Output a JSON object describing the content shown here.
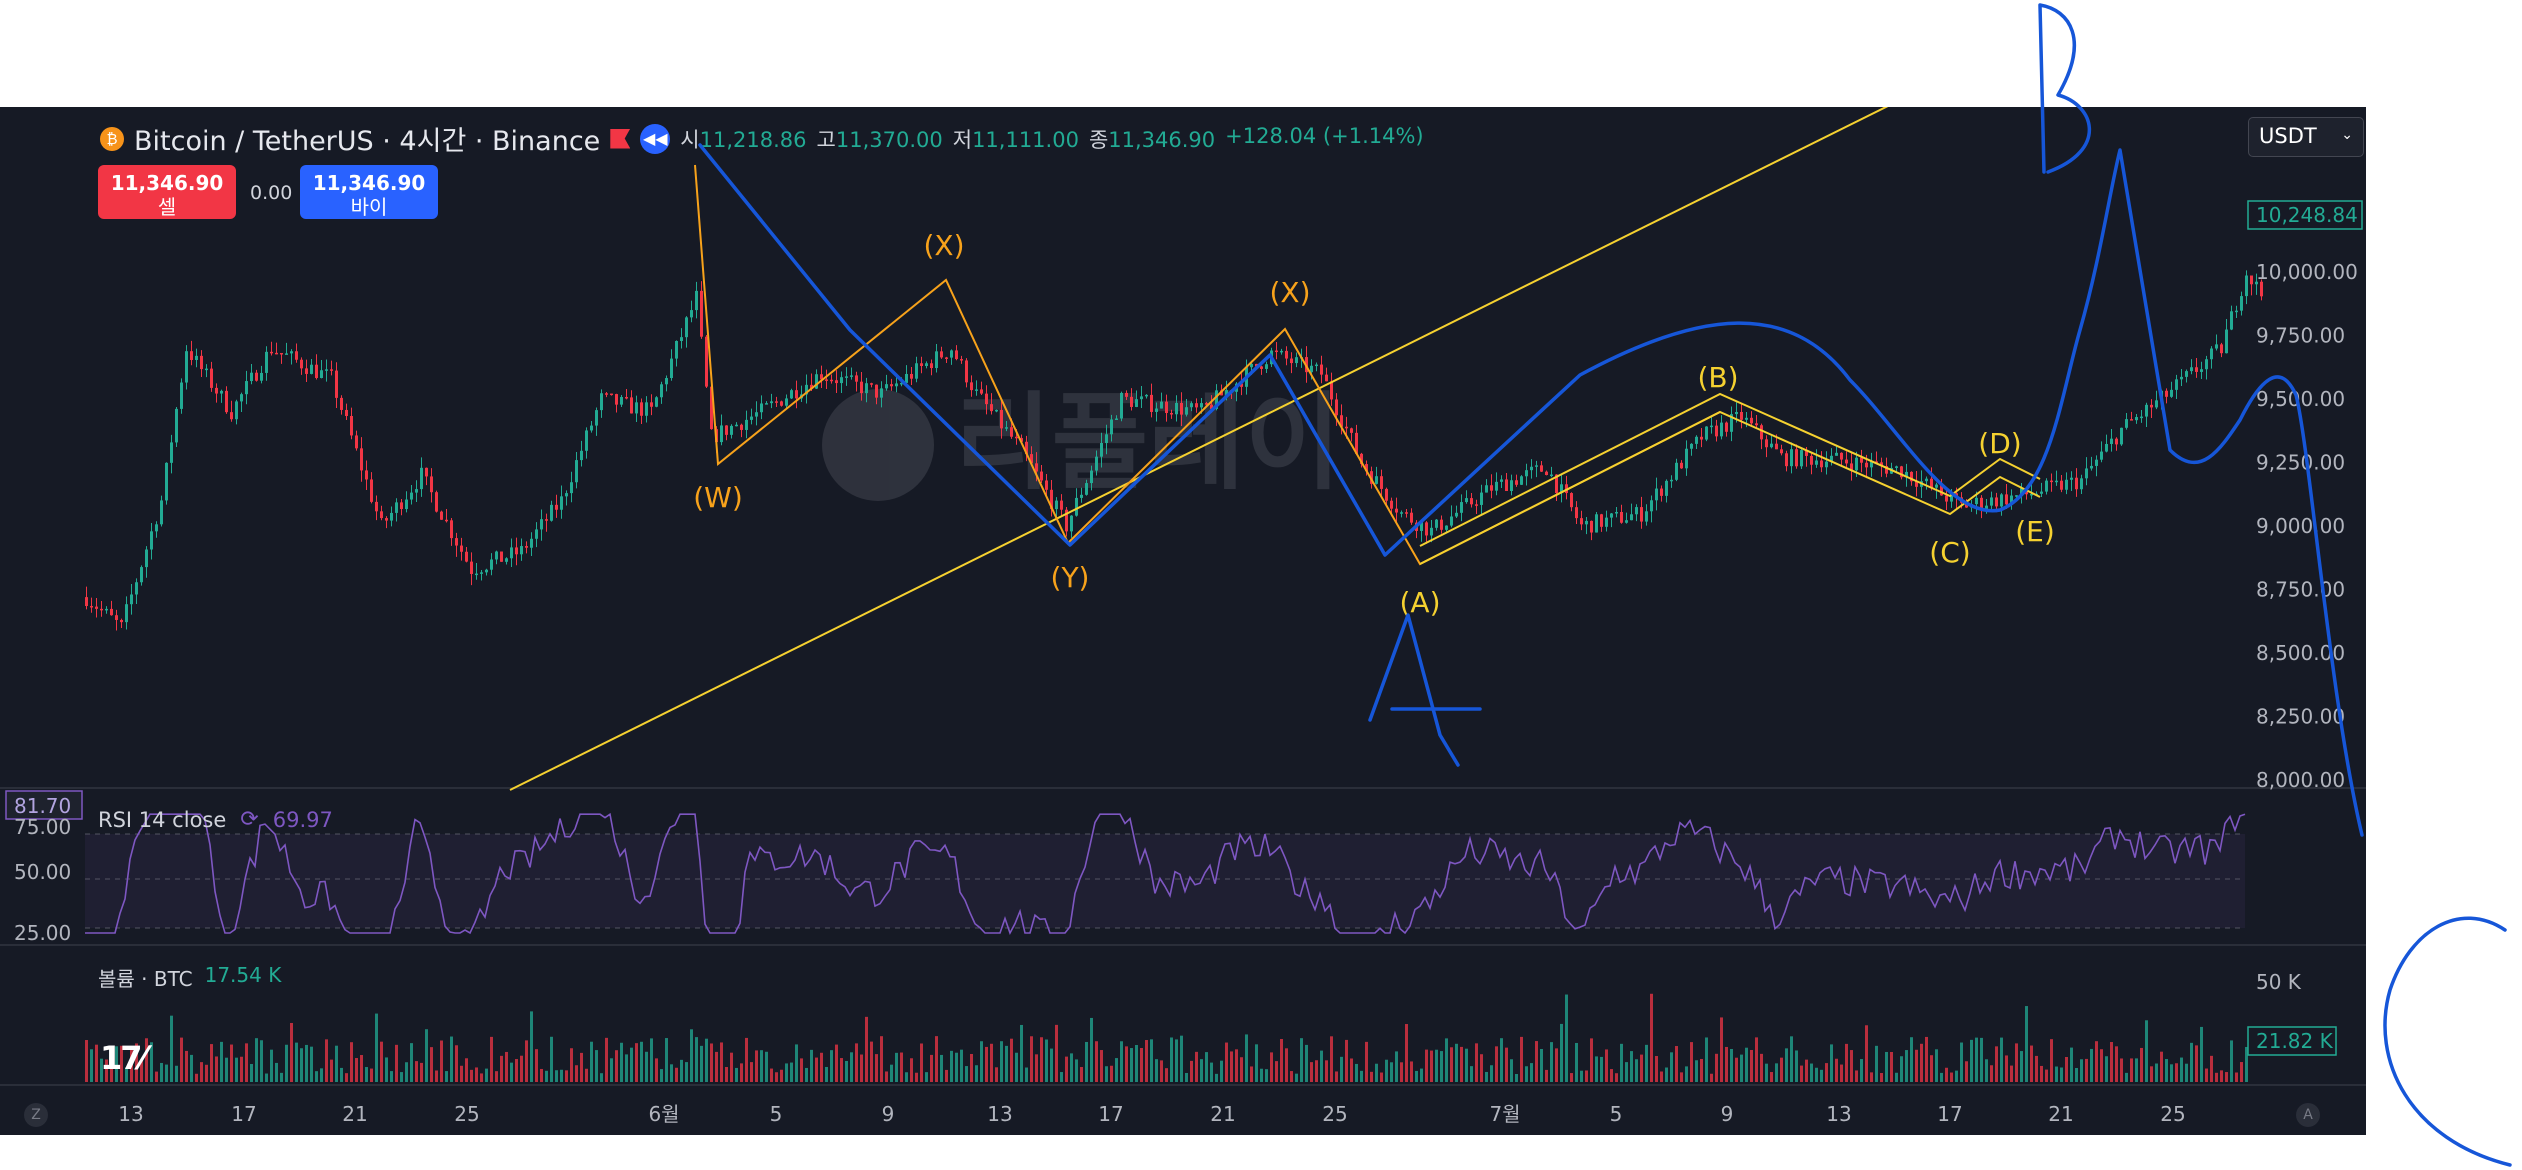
{
  "header": {
    "symbol": "Bitcoin / TetherUS · 4시간 · Binance",
    "open_label": "시",
    "open": "11,218.86",
    "high_label": "고",
    "high": "11,370.00",
    "low_label": "저",
    "low": "11,111.00",
    "close_label": "종",
    "close": "11,346.90",
    "change": "+128.04 (+1.14%)"
  },
  "trade": {
    "sell_price": "11,346.90",
    "sell_label": "셀",
    "spread": "0.00",
    "buy_price": "11,346.90",
    "buy_label": "바이"
  },
  "currency": "USDT",
  "watermark": "리플레이",
  "icons": {
    "coin": "bitcoin-coin-icon",
    "flag": "flag-icon",
    "replay": "replay-icon",
    "dropdown": "chevron-down-icon",
    "rsi_settings": "sync-icon"
  },
  "colors": {
    "up": "#22ab94",
    "down": "#f23645",
    "rsi": "#7e57c2",
    "wave_orange": "#f7a21b",
    "wave_yellow": "#f5d130",
    "pen_blue": "#1656d8",
    "background": "#161a25"
  },
  "price_axis": {
    "ticks": [
      "10,000.00",
      "9,750.00",
      "9,500.00",
      "9,250.00",
      "9,000.00",
      "8,750.00",
      "8,500.00",
      "8,250.00",
      "8,000.00"
    ],
    "current_tag": "10,248.84"
  },
  "rsi": {
    "label": "RSI 14 close",
    "value": "69.97",
    "tag": "81.70",
    "ticks": [
      "75.00",
      "50.00",
      "25.00"
    ]
  },
  "volume": {
    "label": "볼륨 · BTC",
    "value": "17.54 K",
    "axis_tick": "50 K",
    "tag": "21.82 K"
  },
  "time_axis": {
    "ticks": [
      "13",
      "17",
      "21",
      "25",
      "6월",
      "5",
      "9",
      "13",
      "17",
      "21",
      "25",
      "7월",
      "5",
      "9",
      "13",
      "17",
      "21",
      "25"
    ]
  },
  "corner_buttons": {
    "left": "Z",
    "right": "A"
  },
  "wave_labels": {
    "orange": [
      "(W)",
      "(X)",
      "(Y)",
      "(X)"
    ],
    "yellow": [
      "(A)",
      "(B)",
      "(C)",
      "(D)",
      "(E)"
    ]
  },
  "handwritten": [
    "A",
    "B",
    "C"
  ]
}
